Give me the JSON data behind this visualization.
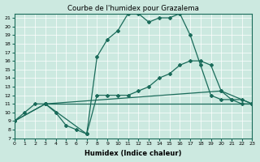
{
  "title": "Courbe de l'humidex pour Grazalema",
  "xlabel": "Humidex (Indice chaleur)",
  "xlim": [
    0,
    23
  ],
  "ylim": [
    7,
    21.5
  ],
  "xticks": [
    0,
    1,
    2,
    3,
    4,
    5,
    6,
    7,
    8,
    9,
    10,
    11,
    12,
    13,
    14,
    15,
    16,
    17,
    18,
    19,
    20,
    21,
    22,
    23
  ],
  "yticks": [
    7,
    8,
    9,
    10,
    11,
    12,
    13,
    14,
    15,
    16,
    17,
    18,
    19,
    20,
    21
  ],
  "bg_color": "#cce9e0",
  "line_color": "#1a6b5a",
  "lines": [
    {
      "x": [
        0,
        1,
        2,
        3,
        4,
        5,
        6,
        7,
        8,
        9,
        10,
        11,
        12,
        13,
        14,
        15,
        16,
        17,
        18,
        19,
        20,
        21,
        22,
        23
      ],
      "y": [
        9,
        10,
        11,
        11,
        10,
        8.5,
        8,
        7.5,
        16.5,
        18.5,
        19.5,
        21.5,
        21.5,
        20.5,
        21,
        21,
        21.5,
        19,
        15.5,
        12,
        11.5,
        11.5,
        11,
        11
      ]
    },
    {
      "x": [
        0,
        3,
        7,
        8,
        9,
        10,
        11,
        12,
        13,
        14,
        15,
        16,
        17,
        18,
        19,
        20,
        21,
        22,
        23
      ],
      "y": [
        9,
        11,
        7.5,
        12,
        12,
        12,
        12,
        12.5,
        13,
        14,
        14.5,
        15.5,
        16,
        16,
        15.5,
        12.5,
        11.5,
        11.5,
        11
      ]
    },
    {
      "x": [
        0,
        3,
        20,
        23
      ],
      "y": [
        9,
        11,
        12.5,
        11
      ]
    },
    {
      "x": [
        3,
        23
      ],
      "y": [
        11,
        11
      ]
    }
  ]
}
